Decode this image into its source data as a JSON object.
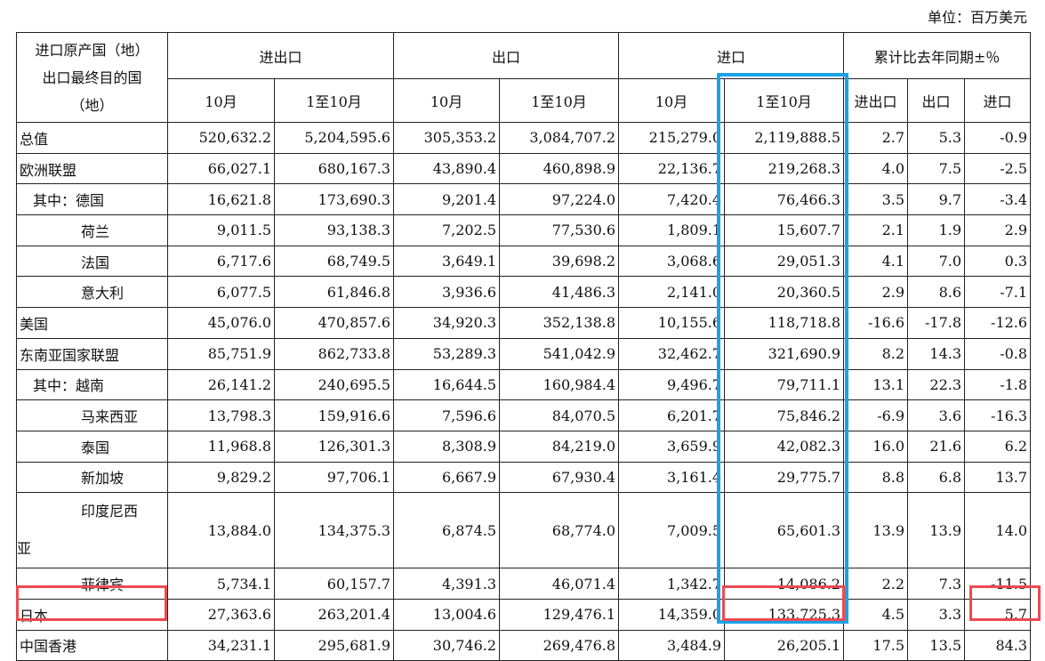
{
  "unit_label": "单位：百万美元",
  "header": {
    "corner": [
      "进口原产国（地）",
      "出口最终目的国",
      "（地）"
    ],
    "groups": [
      "进出口",
      "出口",
      "进口",
      "累计比去年同期±％"
    ],
    "sub": [
      "10月",
      "1至10月",
      "10月",
      "1至10月",
      "10月",
      "1至10月",
      "进出口",
      "出口",
      "进口"
    ]
  },
  "rows": [
    {
      "name": "总值",
      "cells": [
        "520,632.2",
        "5,204,595.6",
        "305,353.2",
        "3,084,707.2",
        "215,279.0",
        "2,119,888.5",
        "2.7",
        "5.3",
        "-0.9"
      ]
    },
    {
      "name": "欧洲联盟",
      "cells": [
        "66,027.1",
        "680,167.3",
        "43,890.4",
        "460,898.9",
        "22,136.7",
        "219,268.3",
        "4.0",
        "7.5",
        "-2.5"
      ]
    },
    {
      "name": "其中：德国",
      "cells": [
        "16,621.8",
        "173,690.3",
        "9,201.4",
        "97,224.0",
        "7,420.4",
        "76,466.3",
        "3.5",
        "9.7",
        "-3.4"
      ]
    },
    {
      "name": "荷兰",
      "cells": [
        "9,011.5",
        "93,138.3",
        "7,202.5",
        "77,530.6",
        "1,809.1",
        "15,607.7",
        "2.1",
        "1.9",
        "2.9"
      ]
    },
    {
      "name": "法国",
      "cells": [
        "6,717.6",
        "68,749.5",
        "3,649.1",
        "39,698.2",
        "3,068.6",
        "29,051.3",
        "4.1",
        "7.0",
        "0.3"
      ]
    },
    {
      "name": "意大利",
      "cells": [
        "6,077.5",
        "61,846.8",
        "3,936.6",
        "41,486.3",
        "2,141.0",
        "20,360.5",
        "2.9",
        "8.6",
        "-7.1"
      ]
    },
    {
      "name": "美国",
      "cells": [
        "45,076.0",
        "470,857.6",
        "34,920.3",
        "352,138.8",
        "10,155.6",
        "118,718.8",
        "-16.6",
        "-17.8",
        "-12.6"
      ]
    },
    {
      "name": "东南亚国家联盟",
      "cells": [
        "85,751.9",
        "862,733.8",
        "53,289.3",
        "541,042.9",
        "32,462.7",
        "321,690.9",
        "8.2",
        "14.3",
        "-0.8"
      ]
    },
    {
      "name": "其中：越南",
      "cells": [
        "26,141.2",
        "240,695.5",
        "16,644.5",
        "160,984.4",
        "9,496.7",
        "79,711.1",
        "13.1",
        "22.3",
        "-1.8"
      ]
    },
    {
      "name": "马来西亚",
      "cells": [
        "13,798.3",
        "159,916.6",
        "7,596.6",
        "84,070.5",
        "6,201.7",
        "75,846.2",
        "-6.9",
        "3.6",
        "-16.3"
      ]
    },
    {
      "name": "泰国",
      "cells": [
        "11,968.8",
        "126,301.3",
        "8,308.9",
        "84,219.0",
        "3,659.9",
        "42,082.3",
        "16.0",
        "21.6",
        "6.2"
      ]
    },
    {
      "name": "新加坡",
      "cells": [
        "9,829.2",
        "97,706.1",
        "6,667.9",
        "67,930.4",
        "3,161.4",
        "29,775.7",
        "8.8",
        "6.8",
        "13.7"
      ]
    },
    {
      "name_line1": "印度尼西",
      "name_line2": "亚",
      "cells": [
        "13,884.0",
        "134,375.3",
        "6,874.5",
        "68,774.0",
        "7,009.5",
        "65,601.3",
        "13.9",
        "13.9",
        "14.0"
      ]
    },
    {
      "name": "菲律宾",
      "cells": [
        "5,734.1",
        "60,157.7",
        "4,391.3",
        "46,071.4",
        "1,342.7",
        "14,086.2",
        "2.2",
        "7.3",
        "-11.5"
      ]
    },
    {
      "name": "日本",
      "cells": [
        "27,363.6",
        "263,201.4",
        "13,004.6",
        "129,476.1",
        "14,359.0",
        "133,725.3",
        "4.5",
        "3.3",
        "5.7"
      ]
    },
    {
      "name": "中国香港",
      "cells": [
        "34,231.1",
        "295,681.9",
        "30,746.2",
        "269,476.8",
        "3,484.9",
        "26,205.1",
        "17.5",
        "13.5",
        "84.3"
      ]
    }
  ],
  "highlight_colors": {
    "blue": "#1aa3e6",
    "red": "#ec4a50"
  }
}
